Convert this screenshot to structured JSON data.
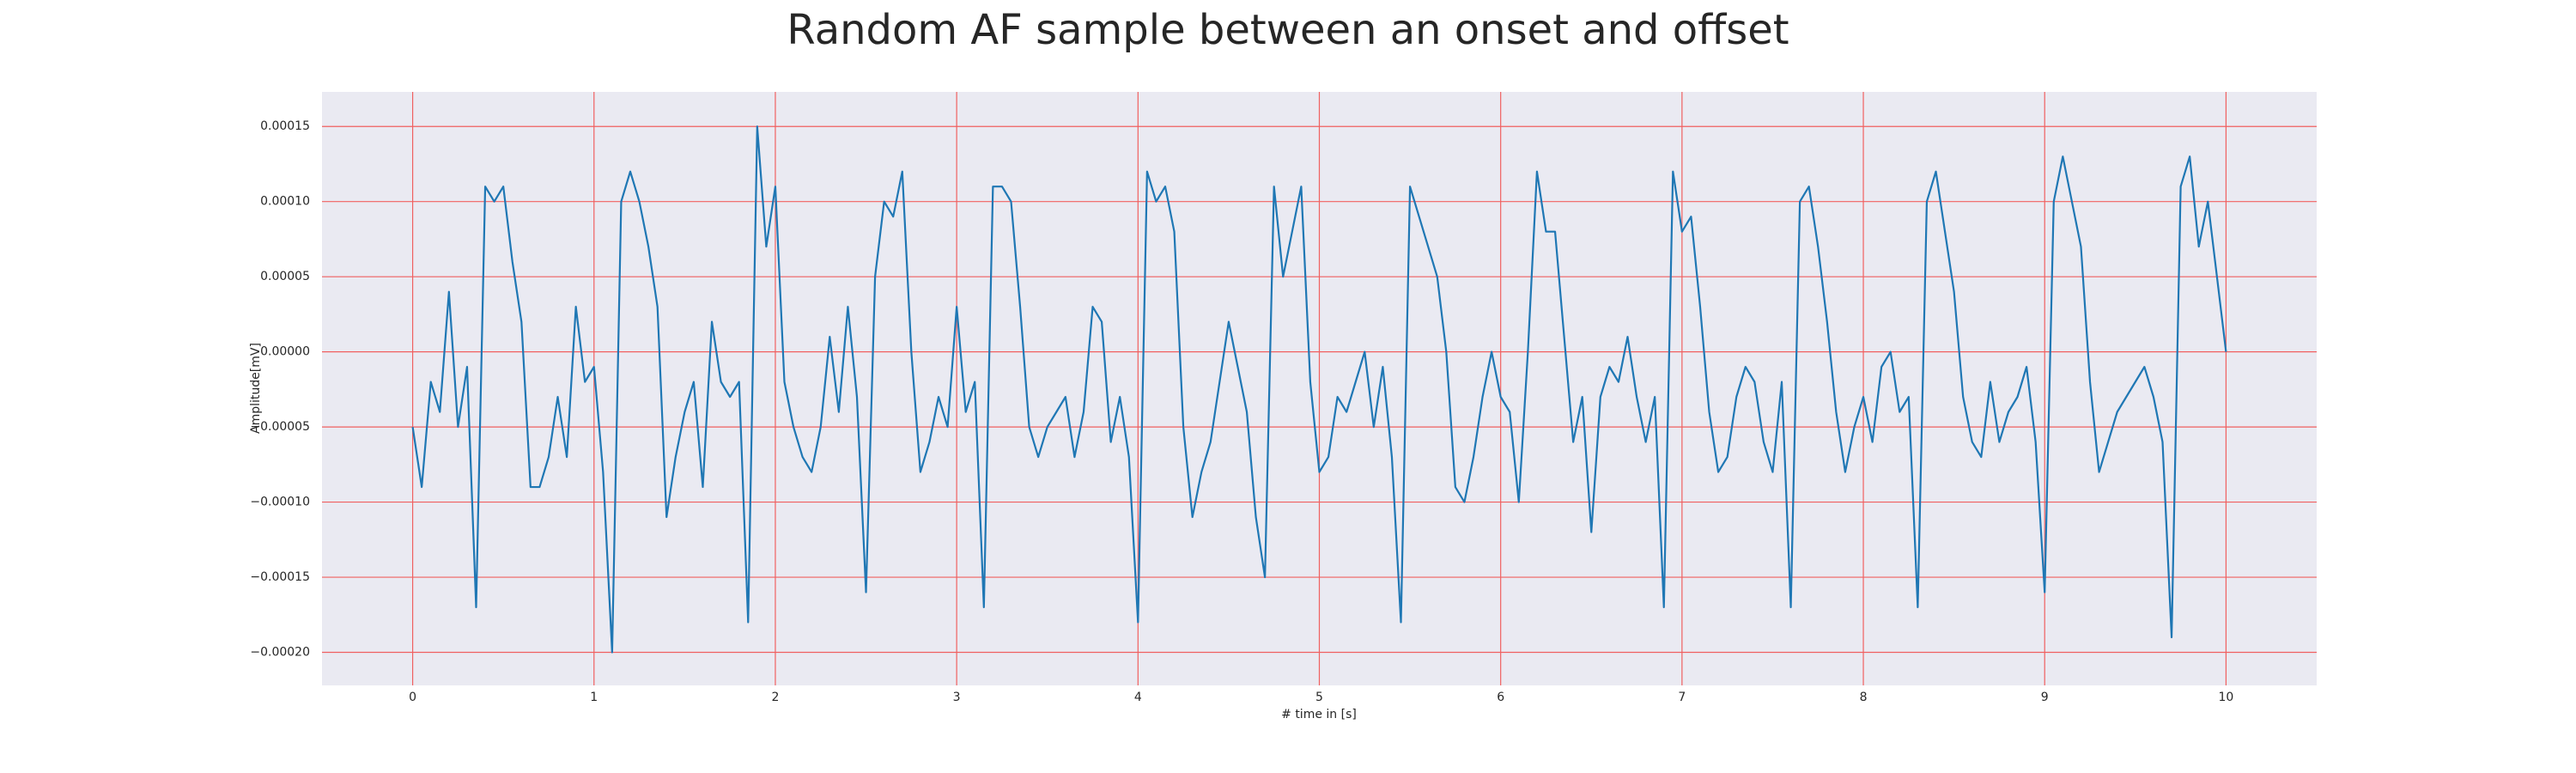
{
  "chart_data": {
    "type": "line",
    "title": "Random AF sample between an onset and offset",
    "xlabel": "# time in [s]",
    "ylabel": "Amplitude[mV]",
    "x": [
      0,
      0.05,
      0.1,
      0.15,
      0.2,
      0.25,
      0.3,
      0.35,
      0.4,
      0.45,
      0.5,
      0.55,
      0.6,
      0.65,
      0.7,
      0.75,
      0.8,
      0.85,
      0.9,
      0.95,
      1,
      1.05,
      1.1,
      1.15,
      1.2,
      1.25,
      1.3,
      1.35,
      1.4,
      1.45,
      1.5,
      1.55,
      1.6,
      1.65,
      1.7,
      1.75,
      1.8,
      1.85,
      1.9,
      1.95,
      2,
      2.05,
      2.1,
      2.15,
      2.2,
      2.25,
      2.3,
      2.35,
      2.4,
      2.45,
      2.5,
      2.55,
      2.6,
      2.65,
      2.7,
      2.75,
      2.8,
      2.85,
      2.9,
      2.95,
      3,
      3.05,
      3.1,
      3.15,
      3.2,
      3.25,
      3.3,
      3.35,
      3.4,
      3.45,
      3.5,
      3.55,
      3.6,
      3.65,
      3.7,
      3.75,
      3.8,
      3.85,
      3.9,
      3.95,
      4,
      4.05,
      4.1,
      4.15,
      4.2,
      4.25,
      4.3,
      4.35,
      4.4,
      4.45,
      4.5,
      4.55,
      4.6,
      4.65,
      4.7,
      4.75,
      4.8,
      4.85,
      4.9,
      4.95,
      5,
      5.05,
      5.1,
      5.15,
      5.2,
      5.25,
      5.3,
      5.35,
      5.4,
      5.45,
      5.5,
      5.55,
      5.6,
      5.65,
      5.7,
      5.75,
      5.8,
      5.85,
      5.9,
      5.95,
      6,
      6.05,
      6.1,
      6.15,
      6.2,
      6.25,
      6.3,
      6.35,
      6.4,
      6.45,
      6.5,
      6.55,
      6.6,
      6.65,
      6.7,
      6.75,
      6.8,
      6.85,
      6.9,
      6.95,
      7,
      7.05,
      7.1,
      7.15,
      7.2,
      7.25,
      7.3,
      7.35,
      7.4,
      7.45,
      7.5,
      7.55,
      7.6,
      7.65,
      7.7,
      7.75,
      7.8,
      7.85,
      7.9,
      7.95,
      8,
      8.05,
      8.1,
      8.15,
      8.2,
      8.25,
      8.3,
      8.35,
      8.4,
      8.45,
      8.5,
      8.55,
      8.6,
      8.65,
      8.7,
      8.75,
      8.8,
      8.85,
      8.9,
      8.95,
      9,
      9.05,
      9.1,
      9.15,
      9.2,
      9.25,
      9.3,
      9.35,
      9.4,
      9.45,
      9.5,
      9.55,
      9.6,
      9.65,
      9.7,
      9.75,
      9.8,
      9.85,
      9.9,
      9.95,
      10
    ],
    "series": [
      {
        "color": "#1f77b4",
        "values": [
          -5e-05,
          -9e-05,
          -2e-05,
          -4e-05,
          4e-05,
          -5e-05,
          -1e-05,
          -0.00017,
          0.00011,
          0.0001,
          0.00011,
          6e-05,
          2e-05,
          -9e-05,
          -9e-05,
          -7e-05,
          -3e-05,
          -7e-05,
          3e-05,
          -2e-05,
          -1e-05,
          -8e-05,
          -0.0002,
          0.0001,
          0.00012,
          0.0001,
          7e-05,
          3e-05,
          -0.00011,
          -7e-05,
          -4e-05,
          -2e-05,
          -9e-05,
          2e-05,
          -2e-05,
          -3e-05,
          -2e-05,
          -0.00018,
          0.00015,
          7e-05,
          0.00011,
          -2e-05,
          -5e-05,
          -7e-05,
          -8e-05,
          -5e-05,
          1e-05,
          -4e-05,
          3e-05,
          -3e-05,
          -0.00016,
          5e-05,
          0.0001,
          9e-05,
          0.00012,
          0,
          -8e-05,
          -6e-05,
          -3e-05,
          -5e-05,
          3e-05,
          -4e-05,
          -2e-05,
          -0.00017,
          0.00011,
          0.00011,
          0.0001,
          3e-05,
          -5e-05,
          -7e-05,
          -5e-05,
          -4e-05,
          -3e-05,
          -7e-05,
          -4e-05,
          3e-05,
          2e-05,
          -6e-05,
          -3e-05,
          -7e-05,
          -0.00018,
          0.00012,
          0.0001,
          0.00011,
          8e-05,
          -5e-05,
          -0.00011,
          -8e-05,
          -6e-05,
          -2e-05,
          2e-05,
          -1e-05,
          -4e-05,
          -0.00011,
          -0.00015,
          0.00011,
          5e-05,
          8e-05,
          0.00011,
          -2e-05,
          -8e-05,
          -7e-05,
          -3e-05,
          -4e-05,
          -2e-05,
          0,
          -5e-05,
          -1e-05,
          -7e-05,
          -0.00018,
          0.00011,
          9e-05,
          7e-05,
          5e-05,
          0,
          -9e-05,
          -0.0001,
          -7e-05,
          -3e-05,
          0,
          -3e-05,
          -4e-05,
          -0.0001,
          0,
          0.00012,
          8e-05,
          8e-05,
          1e-05,
          -6e-05,
          -3e-05,
          -0.00012,
          -3e-05,
          -1e-05,
          -2e-05,
          1e-05,
          -3e-05,
          -6e-05,
          -3e-05,
          -0.00017,
          0.00012,
          8e-05,
          9e-05,
          3e-05,
          -4e-05,
          -8e-05,
          -7e-05,
          -3e-05,
          -1e-05,
          -2e-05,
          -6e-05,
          -8e-05,
          -2e-05,
          -0.00017,
          0.0001,
          0.00011,
          7e-05,
          2e-05,
          -4e-05,
          -8e-05,
          -5e-05,
          -3e-05,
          -6e-05,
          -1e-05,
          0,
          -4e-05,
          -3e-05,
          -0.00017,
          0.0001,
          0.00012,
          8e-05,
          4e-05,
          -3e-05,
          -6e-05,
          -7e-05,
          -2e-05,
          -6e-05,
          -4e-05,
          -3e-05,
          -1e-05,
          -6e-05,
          -0.00016,
          0.0001,
          0.00013,
          0.0001,
          7e-05,
          -2e-05,
          -8e-05,
          -6e-05,
          -4e-05,
          -3e-05,
          -2e-05,
          -1e-05,
          -3e-05,
          -6e-05,
          -0.00019,
          0.00011,
          0.00013,
          7e-05,
          0.0001,
          5e-05,
          0
        ]
      }
    ],
    "xlim": [
      -0.5,
      10.5
    ],
    "xticks": [
      0,
      1,
      2,
      3,
      4,
      5,
      6,
      7,
      8,
      9,
      10
    ],
    "ylim": [
      -0.000222,
      0.000173
    ],
    "yticks": [
      {
        "value": -0.0002,
        "label": "−0.00020"
      },
      {
        "value": -0.00015,
        "label": "−0.00015"
      },
      {
        "value": -0.0001,
        "label": "−0.00010"
      },
      {
        "value": -5e-05,
        "label": "−0.00005"
      },
      {
        "value": 0,
        "label": "0.00000"
      },
      {
        "value": 5e-05,
        "label": "0.00005"
      },
      {
        "value": 0.0001,
        "label": "0.00010"
      },
      {
        "value": 0.00015,
        "label": "0.00015"
      }
    ],
    "grid": true,
    "grid_color": "#f06060",
    "background": "#eaeaf2"
  }
}
